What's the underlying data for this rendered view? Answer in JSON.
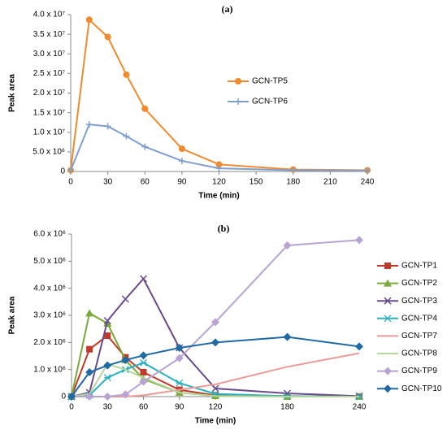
{
  "chart_data": [
    {
      "type": "line",
      "title": "(a)",
      "x_label": "Time (min)",
      "y_label": "Peak area",
      "x": [
        0,
        15,
        30,
        45,
        60,
        90,
        120,
        180,
        240
      ],
      "xlim": [
        0,
        240
      ],
      "xticks": [
        0,
        30,
        60,
        90,
        120,
        150,
        180,
        210,
        240
      ],
      "ylim": [
        0,
        40000000
      ],
      "yticks": [
        0,
        {
          "value": 5000000,
          "label": "5.0 x 10⁶"
        },
        {
          "value": 10000000,
          "label": "1.0 x 10⁷"
        },
        {
          "value": 15000000,
          "label": "1.5 x 10⁷"
        },
        {
          "value": 20000000,
          "label": "2.0 x 10⁷"
        },
        {
          "value": 25000000,
          "label": "2.5 x 10⁷"
        },
        {
          "value": 30000000,
          "label": "3.0 x 10⁷"
        },
        {
          "value": 35000000,
          "label": "3.5 x 10⁷"
        },
        {
          "value": 40000000,
          "label": "4.0 x 10⁷"
        }
      ],
      "grid": false,
      "series": [
        {
          "name": "GCN-TP5",
          "color": "#f08a2c",
          "marker": "circle",
          "values": [
            300000,
            38700000,
            34300000,
            24700000,
            16000000,
            5800000,
            1800000,
            500000,
            300000
          ]
        },
        {
          "name": "GCN-TP6",
          "color": "#7f9fcf",
          "marker": "plus",
          "values": [
            300000,
            12000000,
            11500000,
            9000000,
            6300000,
            2700000,
            800000,
            300000,
            200000
          ]
        }
      ]
    },
    {
      "type": "line",
      "title": "(b)",
      "x_label": "Time (min)",
      "y_label": "Peak area",
      "x": [
        0,
        15,
        30,
        45,
        60,
        90,
        120,
        180,
        240
      ],
      "xlim": [
        0,
        240
      ],
      "xticks": [
        0,
        30,
        60,
        90,
        120,
        180,
        240
      ],
      "ylim": [
        0,
        6000000
      ],
      "yticks": [
        0,
        {
          "value": 1000000,
          "label": "1.0 x 10⁶"
        },
        {
          "value": 2000000,
          "label": "2.0 x 10⁶"
        },
        {
          "value": 3000000,
          "label": "3.0 x 10⁶"
        },
        {
          "value": 4000000,
          "label": "4.0 x 10⁶"
        },
        {
          "value": 5000000,
          "label": "5.0 x 10⁶"
        },
        {
          "value": 6000000,
          "label": "6.0 x 10⁶"
        }
      ],
      "grid": false,
      "series": [
        {
          "name": "GCN-TP1",
          "color": "#c0392b",
          "marker": "square",
          "values": [
            0,
            1750000,
            2250000,
            1450000,
            900000,
            250000,
            50000,
            20000,
            0
          ]
        },
        {
          "name": "GCN-TP2",
          "color": "#7aab3a",
          "marker": "triangle",
          "values": [
            0,
            3080000,
            2700000,
            1350000,
            650000,
            150000,
            30000,
            0,
            0
          ]
        },
        {
          "name": "GCN-TP3",
          "color": "#6a4a8c",
          "marker": "x",
          "values": [
            0,
            150000,
            2800000,
            3600000,
            4350000,
            1800000,
            300000,
            120000,
            20000
          ]
        },
        {
          "name": "GCN-TP4",
          "color": "#2ab0c0",
          "marker": "asterisk",
          "values": [
            0,
            50000,
            700000,
            1000000,
            1250000,
            500000,
            100000,
            20000,
            0
          ]
        },
        {
          "name": "GCN-TP7",
          "color": "#eb9a98",
          "marker": "none",
          "values": [
            0,
            0,
            0,
            0,
            50000,
            250000,
            450000,
            1100000,
            1600000
          ]
        },
        {
          "name": "GCN-TP8",
          "color": "#b5d59a",
          "marker": "none",
          "values": [
            0,
            100000,
            1200000,
            1000000,
            700000,
            150000,
            20000,
            0,
            0
          ]
        },
        {
          "name": "GCN-TP9",
          "color": "#b9a3d3",
          "marker": "diamond",
          "values": [
            0,
            0,
            0,
            80000,
            550000,
            1420000,
            2750000,
            5580000,
            5780000
          ]
        },
        {
          "name": "GCN-TP10",
          "color": "#1f6aa5",
          "marker": "diamond",
          "values": [
            0,
            900000,
            1150000,
            1350000,
            1520000,
            1800000,
            2000000,
            2200000,
            1850000
          ]
        }
      ]
    }
  ]
}
